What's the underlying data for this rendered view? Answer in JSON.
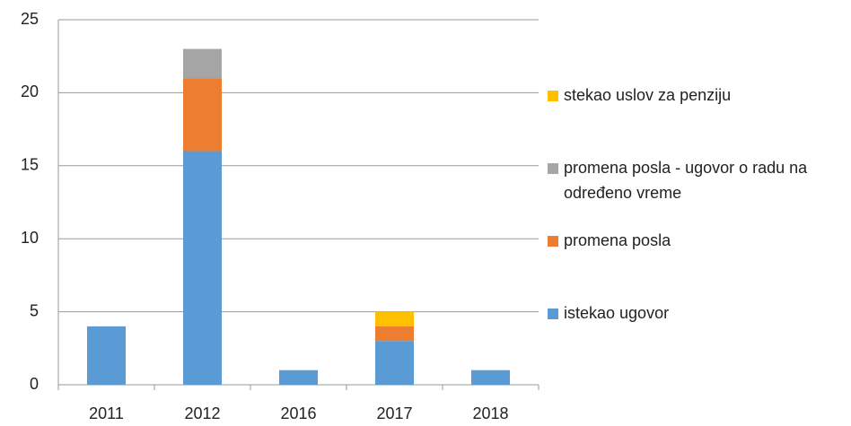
{
  "chart_data": {
    "type": "stacked_bar",
    "categories": [
      "2011",
      "2012",
      "2016",
      "2017",
      "2018"
    ],
    "series": [
      {
        "name": "istekao ugovor",
        "color": "#5b9bd5",
        "values": [
          4,
          16,
          1,
          3,
          1
        ]
      },
      {
        "name": "promena posla",
        "color": "#ed7d31",
        "values": [
          0,
          5,
          0,
          1,
          0
        ]
      },
      {
        "name": "promena posla - ugovor o radu na određeno vreme",
        "color": "#a5a5a5",
        "values": [
          0,
          2,
          0,
          0,
          0
        ]
      },
      {
        "name": "stekao uslov za penziju",
        "color": "#ffc000",
        "values": [
          0,
          0,
          0,
          1,
          0
        ]
      }
    ],
    "ylim": [
      0,
      25
    ],
    "yticks": [
      0,
      5,
      10,
      15,
      20,
      25
    ],
    "grid": true,
    "legend": "right"
  }
}
